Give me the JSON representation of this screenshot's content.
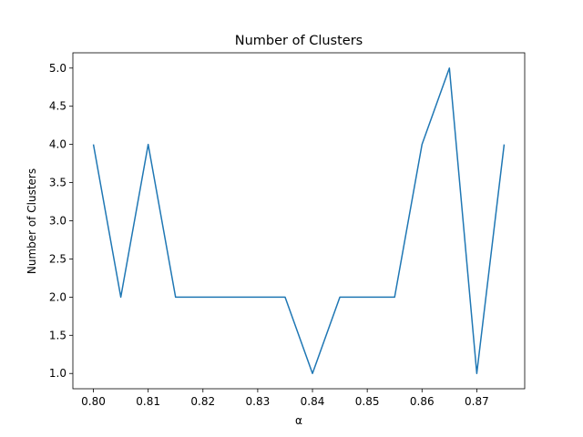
{
  "chart_data": {
    "type": "line",
    "title": "Number of Clusters",
    "xlabel": "α",
    "ylabel": "Number of Clusters",
    "x": [
      0.8,
      0.805,
      0.81,
      0.815,
      0.82,
      0.825,
      0.83,
      0.835,
      0.84,
      0.845,
      0.85,
      0.855,
      0.86,
      0.865,
      0.87,
      0.875
    ],
    "series": [
      {
        "values": [
          4,
          2,
          4,
          2,
          2,
          2,
          2,
          2,
          1,
          2,
          2,
          2,
          4,
          5,
          1,
          4
        ],
        "color": "#1f77b4"
      }
    ],
    "xlim": [
      0.79625,
      0.87875
    ],
    "ylim": [
      0.8,
      5.2
    ],
    "xticks": [
      0.8,
      0.81,
      0.82,
      0.83,
      0.84,
      0.85,
      0.86,
      0.87
    ],
    "xtick_labels": [
      "0.80",
      "0.81",
      "0.82",
      "0.83",
      "0.84",
      "0.85",
      "0.86",
      "0.87"
    ],
    "yticks": [
      1.0,
      1.5,
      2.0,
      2.5,
      3.0,
      3.5,
      4.0,
      4.5,
      5.0
    ],
    "ytick_labels": [
      "1.0",
      "1.5",
      "2.0",
      "2.5",
      "3.0",
      "3.5",
      "4.0",
      "4.5",
      "5.0"
    ],
    "grid": false,
    "legend": "none"
  }
}
